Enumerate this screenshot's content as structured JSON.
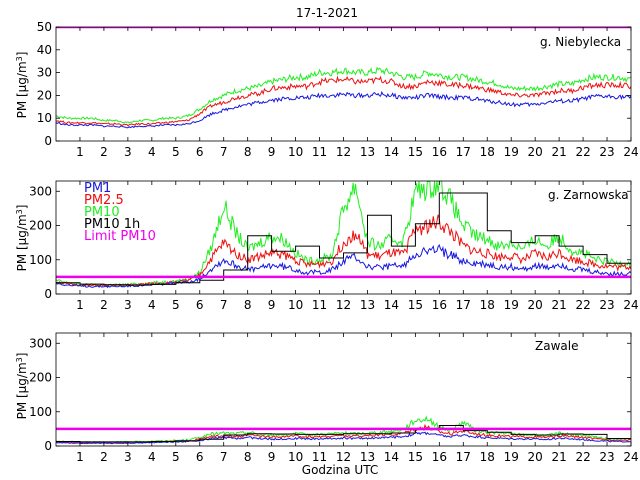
{
  "figure": {
    "title": "17-1-2021",
    "xlabel": "Godzina UTC"
  },
  "colors": {
    "PM1": "#1818dd",
    "PM2.5": "#ee1010",
    "PM10": "#22ee22",
    "PM10 1h": "#000000",
    "Limit PM10": "#ee00ee"
  },
  "chart_data": [
    {
      "type": "line",
      "station": "g. Niebylecka",
      "ylabel": "PM [µg/m3]",
      "ylim": [
        0,
        50
      ],
      "yticks": [
        0,
        10,
        20,
        30,
        40,
        50
      ],
      "xlim": [
        0,
        24
      ],
      "xticks": [
        1,
        2,
        3,
        4,
        5,
        6,
        7,
        8,
        9,
        10,
        11,
        12,
        13,
        14,
        15,
        16,
        17,
        18,
        19,
        20,
        21,
        22,
        23,
        24
      ],
      "limit_pm10": 50,
      "hours": [
        0,
        0.5,
        1,
        1.5,
        2,
        2.5,
        3,
        3.5,
        4,
        4.5,
        5,
        5.5,
        6,
        6.5,
        7,
        7.5,
        8,
        8.5,
        9,
        9.5,
        10,
        10.5,
        11,
        11.5,
        12,
        12.5,
        13,
        13.5,
        14,
        14.5,
        15,
        15.5,
        16,
        16.5,
        17,
        17.5,
        18,
        18.5,
        19,
        19.5,
        20,
        20.5,
        21,
        21.5,
        22,
        22.5,
        23,
        23.5,
        24
      ],
      "series": [
        {
          "name": "PM10",
          "values": [
            11,
            10,
            10,
            10,
            9,
            9,
            8,
            9,
            9,
            10,
            10,
            11,
            14,
            18,
            20,
            22,
            23,
            24,
            26,
            27,
            28,
            28,
            30,
            30,
            31,
            30,
            30,
            31,
            30,
            28,
            28,
            30,
            29,
            28,
            28,
            27,
            26,
            25,
            23,
            23,
            23,
            24,
            25,
            25,
            27,
            28,
            28,
            28,
            27
          ]
        },
        {
          "name": "PM2.5",
          "values": [
            9,
            8,
            8,
            8,
            7.5,
            7.5,
            7,
            7.5,
            7.5,
            8,
            8.5,
            9,
            12,
            15.5,
            17,
            19,
            20,
            21,
            23,
            23.5,
            24,
            24,
            26,
            26.5,
            27,
            26,
            26,
            27,
            26,
            24,
            24,
            26,
            25.5,
            24.5,
            24.5,
            23.5,
            22.5,
            21.5,
            20,
            20,
            20,
            21,
            22,
            22,
            23.5,
            24.5,
            24.5,
            24.5,
            24
          ]
        },
        {
          "name": "PM1",
          "values": [
            8,
            7,
            7,
            7,
            6.5,
            6.5,
            6,
            6.5,
            6.5,
            7,
            7,
            7.5,
            9,
            12,
            13.5,
            15,
            16,
            17,
            18,
            18.5,
            19,
            19,
            20,
            20,
            20.5,
            20,
            20,
            20.5,
            20,
            19,
            19,
            20,
            19.5,
            19,
            19,
            18.5,
            17.5,
            17,
            16,
            16,
            16,
            17,
            17.5,
            17.5,
            18.5,
            19.5,
            19.5,
            19.5,
            19
          ]
        }
      ],
      "hourly_pm10": null
    },
    {
      "type": "line",
      "station": "g. Zarnowska",
      "ylabel": "PM [µg/m3]",
      "ylim": [
        0,
        330
      ],
      "yticks": [
        0,
        100,
        200,
        300
      ],
      "xlim": [
        0,
        24
      ],
      "xticks": [
        1,
        2,
        3,
        4,
        5,
        6,
        7,
        8,
        9,
        10,
        11,
        12,
        13,
        14,
        15,
        16,
        17,
        18,
        19,
        20,
        21,
        22,
        23,
        24
      ],
      "limit_pm10": 50,
      "hours": [
        0,
        0.5,
        1,
        1.5,
        2,
        2.5,
        3,
        3.5,
        4,
        4.5,
        5,
        5.5,
        6,
        6.5,
        7,
        7.5,
        8,
        8.5,
        9,
        9.5,
        10,
        10.5,
        11,
        11.5,
        12,
        12.5,
        13,
        13.5,
        14,
        14.5,
        15,
        15.5,
        16,
        16.5,
        17,
        17.5,
        18,
        18.5,
        19,
        19.5,
        20,
        20.5,
        21,
        21.5,
        22,
        22.5,
        23,
        23.5,
        24
      ],
      "series": [
        {
          "name": "PM10",
          "values": [
            40,
            32,
            28,
            27,
            27,
            27,
            28,
            30,
            33,
            35,
            38,
            42,
            62,
            140,
            260,
            180,
            130,
            150,
            170,
            160,
            120,
            95,
            100,
            110,
            250,
            320,
            150,
            140,
            160,
            155,
            300,
            310,
            330,
            270,
            200,
            170,
            160,
            140,
            150,
            130,
            160,
            140,
            170,
            130,
            120,
            100,
            95,
            90,
            92
          ]
        },
        {
          "name": "PM2.5",
          "values": [
            36,
            29,
            26,
            25,
            25,
            25,
            26,
            28,
            30,
            32,
            35,
            39,
            55,
            105,
            150,
            120,
            100,
            110,
            120,
            115,
            100,
            85,
            88,
            95,
            150,
            180,
            115,
            110,
            120,
            115,
            190,
            200,
            210,
            180,
            140,
            125,
            118,
            108,
            112,
            100,
            118,
            106,
            122,
            102,
            96,
            86,
            82,
            78,
            80
          ]
        },
        {
          "name": "PM1",
          "values": [
            32,
            26,
            23,
            22,
            22,
            22,
            23,
            25,
            27,
            29,
            31,
            35,
            45,
            75,
            100,
            85,
            70,
            75,
            85,
            80,
            72,
            62,
            65,
            70,
            95,
            110,
            80,
            76,
            82,
            80,
            120,
            125,
            130,
            112,
            96,
            88,
            85,
            78,
            80,
            72,
            84,
            76,
            88,
            74,
            70,
            63,
            60,
            58,
            60
          ]
        }
      ],
      "hourly_pm10": [
        33,
        29,
        27,
        26,
        28,
        33,
        40,
        70,
        170,
        125,
        140,
        105,
        120,
        230,
        140,
        205,
        295,
        295,
        185,
        150,
        170,
        140,
        115,
        90
      ]
    },
    {
      "type": "line",
      "station": "Zawale",
      "ylabel": "PM [µg/m3]",
      "ylim": [
        0,
        330
      ],
      "yticks": [
        0,
        100,
        200,
        300
      ],
      "xlim": [
        0,
        24
      ],
      "xticks": [
        1,
        2,
        3,
        4,
        5,
        6,
        7,
        8,
        9,
        10,
        11,
        12,
        13,
        14,
        15,
        16,
        17,
        18,
        19,
        20,
        21,
        22,
        23,
        24
      ],
      "limit_pm10": 50,
      "hours": [
        0,
        0.5,
        1,
        1.5,
        2,
        2.5,
        3,
        3.5,
        4,
        4.5,
        5,
        5.5,
        6,
        6.5,
        7,
        7.5,
        8,
        8.5,
        9,
        9.5,
        10,
        10.5,
        11,
        11.5,
        12,
        12.5,
        13,
        13.5,
        14,
        14.5,
        15,
        15.5,
        16,
        16.5,
        17,
        17.5,
        18,
        18.5,
        19,
        19.5,
        20,
        20.5,
        21,
        21.5,
        22,
        22.5,
        23,
        23.5,
        24
      ],
      "series": [
        {
          "name": "PM10",
          "values": [
            14,
            13,
            12,
            12,
            12,
            12,
            12,
            13,
            14,
            15,
            16,
            18,
            25,
            35,
            38,
            36,
            40,
            35,
            32,
            34,
            36,
            33,
            34,
            36,
            38,
            36,
            38,
            40,
            42,
            50,
            75,
            80,
            55,
            45,
            70,
            45,
            40,
            38,
            35,
            33,
            32,
            30,
            38,
            35,
            30,
            26,
            22,
            20,
            20
          ]
        },
        {
          "name": "PM2.5",
          "values": [
            12,
            11,
            10,
            10,
            10,
            10,
            10,
            11,
            12,
            13,
            14,
            15,
            20,
            28,
            30,
            28,
            32,
            28,
            26,
            27,
            29,
            27,
            27,
            29,
            30,
            29,
            30,
            32,
            33,
            38,
            50,
            55,
            42,
            36,
            45,
            36,
            32,
            30,
            28,
            27,
            26,
            25,
            30,
            28,
            25,
            21,
            18,
            17,
            17
          ]
        },
        {
          "name": "PM1",
          "values": [
            10,
            9,
            8,
            8,
            8,
            8,
            8,
            9,
            10,
            11,
            12,
            13,
            16,
            22,
            24,
            22,
            25,
            22,
            20,
            21,
            22,
            21,
            21,
            22,
            23,
            22,
            23,
            24,
            25,
            28,
            36,
            38,
            31,
            27,
            32,
            27,
            24,
            23,
            21,
            21,
            20,
            19,
            23,
            21,
            19,
            16,
            14,
            13,
            13
          ]
        }
      ],
      "hourly_pm10": [
        13,
        12,
        12,
        12,
        13,
        15,
        20,
        32,
        36,
        35,
        34,
        34,
        36,
        36,
        38,
        48,
        60,
        45,
        40,
        34,
        32,
        35,
        34,
        22
      ]
    }
  ]
}
